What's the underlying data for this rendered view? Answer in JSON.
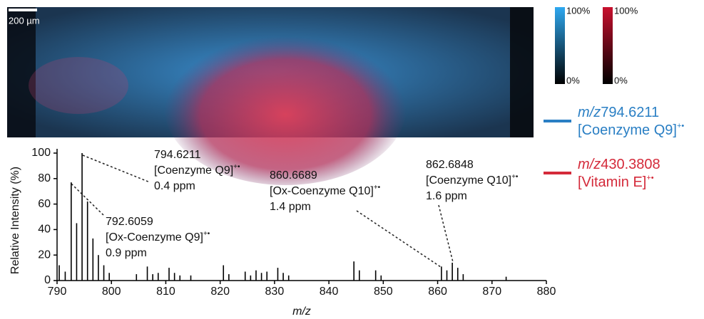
{
  "image": {
    "scale_bar": "200 µm",
    "colorbars": [
      {
        "max": "100%",
        "min": "0%",
        "color": "#2ea8f0"
      },
      {
        "max": "100%",
        "min": "0%",
        "color": "#c8102e"
      }
    ],
    "channels": [
      {
        "prefix": "m/z",
        "mz": "794.6211",
        "name": "[Coenzyme Q9]",
        "charge": "+•",
        "color": "#2a7fc4"
      },
      {
        "prefix": "m/z",
        "mz": "430.3808",
        "name": "[Vitamin E]",
        "charge": "+•",
        "color": "#d42a3a"
      }
    ]
  },
  "chart_data": {
    "type": "bar",
    "color": "#000000",
    "x": [
      790.4,
      791.5,
      792.6,
      793.6,
      794.6,
      795.6,
      796.6,
      797.6,
      798.6,
      799.6,
      804.6,
      806.6,
      807.6,
      808.6,
      810.6,
      811.6,
      812.6,
      814.6,
      820.6,
      821.6,
      824.6,
      825.6,
      826.6,
      827.6,
      828.6,
      830.6,
      831.6,
      832.6,
      844.6,
      845.6,
      848.6,
      849.6,
      860.7,
      861.7,
      862.7,
      863.7,
      864.7,
      872.6
    ],
    "values": [
      12,
      7,
      77,
      45,
      100,
      62,
      33,
      20,
      12,
      6,
      5,
      11,
      5,
      6,
      10,
      6,
      4,
      4,
      12,
      5,
      7,
      4,
      8,
      6,
      7,
      10,
      6,
      4,
      15,
      8,
      8,
      4,
      11,
      8,
      14,
      10,
      5,
      3
    ],
    "xlim": [
      790,
      880
    ],
    "xticks": [
      790,
      800,
      810,
      820,
      830,
      840,
      850,
      860,
      870,
      880
    ],
    "ylim": [
      0,
      100
    ],
    "yticks": [
      0,
      20,
      40,
      60,
      80,
      100
    ],
    "xlabel": "m/z",
    "ylabel": "Relative Intensity (%)",
    "annotations": [
      {
        "mz": "794.6211",
        "name": "[Coenzyme Q9]",
        "charge": "+•",
        "error": "0.4 ppm"
      },
      {
        "mz": "792.6059",
        "name": "[Ox-Coenzyme Q9]",
        "charge": "+•",
        "error": "0.9 ppm"
      },
      {
        "mz": "860.6689",
        "name": "[Ox-Coenzyme Q10]",
        "charge": "+•",
        "error": "1.4 ppm"
      },
      {
        "mz": "862.6848",
        "name": "[Coenzyme Q10]",
        "charge": "+•",
        "error": "1.6 ppm"
      }
    ]
  }
}
